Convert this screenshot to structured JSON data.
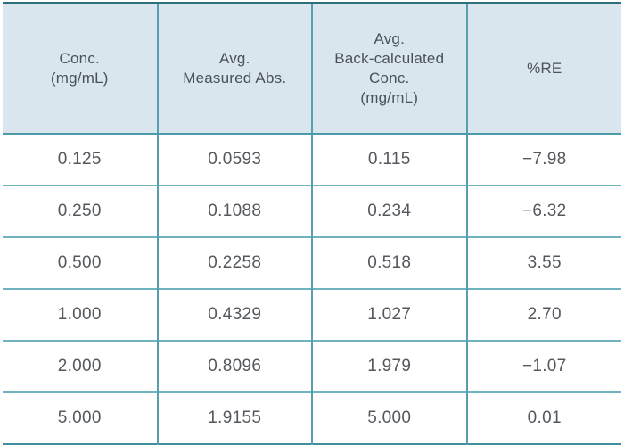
{
  "table": {
    "columns": [
      {
        "label": "Conc.\n(mg/mL)"
      },
      {
        "label": "Avg.\nMeasured Abs."
      },
      {
        "label": "Avg.\nBack-calculated\nConc.\n(mg/mL)"
      },
      {
        "label": "%RE"
      }
    ],
    "rows": [
      {
        "cells": [
          "0.125",
          "0.0593",
          "0.115",
          "−7.98"
        ]
      },
      {
        "cells": [
          "0.250",
          "0.1088",
          "0.234",
          "−6.32"
        ]
      },
      {
        "cells": [
          "0.500",
          "0.2258",
          "0.518",
          "3.55"
        ]
      },
      {
        "cells": [
          "1.000",
          "0.4329",
          "1.027",
          "2.70"
        ]
      },
      {
        "cells": [
          "2.000",
          "0.8096",
          "1.979",
          "−1.07"
        ]
      },
      {
        "cells": [
          "5.000",
          "1.9155",
          "5.000",
          "0.01"
        ]
      }
    ]
  },
  "colors": {
    "header_background": "#d9e6ed",
    "top_border": "#2e6e79",
    "interior_border": "#569faf",
    "row_border": "#6fb3bf",
    "bottom_border": "#3f8e9e",
    "header_text": "#4a5157",
    "body_text": "#54585d"
  }
}
